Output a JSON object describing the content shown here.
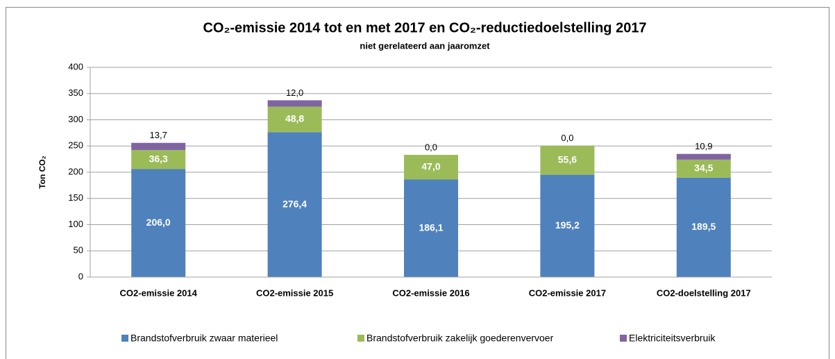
{
  "chart_data": {
    "type": "bar",
    "stacked": true,
    "title": "CO₂-emissie 2014 tot en met 2017 en CO₂-reductiedoelstelling 2017",
    "subtitle": "niet gerelateerd aan jaaromzet",
    "y_label": "Ton CO₂",
    "categories": [
      "CO2-emissie 2014",
      "CO2-emissie 2015",
      "CO2-emissie 2016",
      "CO2-emissie 2017",
      "CO2-doelstelling 2017"
    ],
    "series": [
      {
        "name": "Brandstofverbruik zwaar materieel",
        "color": "#4f81bd",
        "values": [
          206.0,
          276.4,
          186.1,
          195.2,
          189.5
        ],
        "value_labels": [
          "206,0",
          "276,4",
          "186,1",
          "195,2",
          "189,5"
        ]
      },
      {
        "name": "Brandstofverbruik zakelijk goederenvervoer",
        "color": "#9bbb59",
        "values": [
          36.3,
          48.8,
          47.0,
          55.6,
          34.5
        ],
        "value_labels": [
          "36,3",
          "48,8",
          "47,0",
          "55,6",
          "34,5"
        ]
      },
      {
        "name": "Elektriciteitsverbruik",
        "color": "#8064a2",
        "values": [
          13.7,
          12.0,
          0.0,
          0.0,
          10.9
        ],
        "value_labels": [
          "13,7",
          "12,0",
          "0,0",
          "0,0",
          "10,9"
        ]
      }
    ],
    "ylim": [
      0,
      400
    ],
    "yticks": [
      0,
      50,
      100,
      150,
      200,
      250,
      300,
      350,
      400
    ],
    "grid": true,
    "legend": "bottom"
  }
}
